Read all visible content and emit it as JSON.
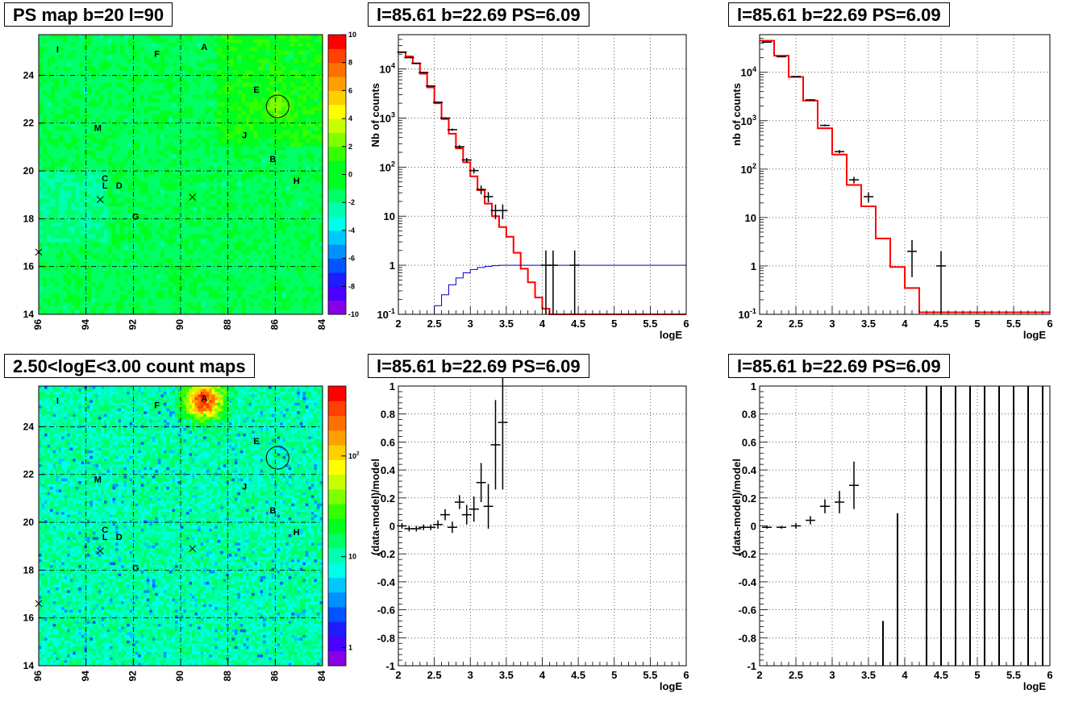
{
  "panels": {
    "map_top": {
      "title": "PS map b=20 l=90"
    },
    "spec_top": {
      "title": "l=85.61 b=22.69 PS=6.09"
    },
    "spec_top2": {
      "title": "l=85.61 b=22.69 PS=6.09"
    },
    "map_bottom": {
      "title": "2.50<logE<3.00 count maps"
    },
    "resid_bottom": {
      "title": "l=85.61 b=22.69 PS=6.09"
    },
    "resid_bottom2": {
      "title": "l=85.61 b=22.69 PS=6.09"
    }
  },
  "colors": {
    "model": "#ff0000",
    "background_model": "#0000cc",
    "data": "#000000"
  },
  "chart_data": [
    {
      "type": "heatmap",
      "title": "PS map b=20 l=90",
      "xlim": [
        96,
        84
      ],
      "ylim": [
        14,
        25.7
      ],
      "x_ticks": [
        "96",
        "94",
        "92",
        "90",
        "88",
        "86",
        "84"
      ],
      "y_ticks": [
        "14",
        "16",
        "18",
        "20",
        "22",
        "24"
      ],
      "palette_ticks": [
        "10",
        "8",
        "6",
        "4",
        "2",
        "0",
        "-2",
        "-4",
        "-6",
        "-8",
        "-10"
      ],
      "zlim": [
        -10,
        10
      ],
      "sources": [
        {
          "label": "A",
          "l": 89.0,
          "b": 25.2
        },
        {
          "label": "F",
          "l": 91.0,
          "b": 24.9
        },
        {
          "label": "I",
          "l": 95.2,
          "b": 25.1
        },
        {
          "label": "E",
          "l": 86.8,
          "b": 23.4
        },
        {
          "label": "M",
          "l": 93.5,
          "b": 21.8
        },
        {
          "label": "J",
          "l": 87.3,
          "b": 21.5
        },
        {
          "label": "B",
          "l": 86.1,
          "b": 20.5
        },
        {
          "label": "H",
          "l": 85.1,
          "b": 19.6
        },
        {
          "label": "C",
          "l": 93.2,
          "b": 19.7
        },
        {
          "label": "L",
          "l": 93.2,
          "b": 19.4
        },
        {
          "label": "D",
          "l": 92.6,
          "b": 19.4
        },
        {
          "label": "G",
          "l": 91.9,
          "b": 18.1
        }
      ],
      "crosses": [
        {
          "l": 93.4,
          "b": 18.8
        },
        {
          "l": 89.5,
          "b": 18.9
        },
        {
          "l": 96.0,
          "b": 16.6
        }
      ],
      "circle": {
        "l": 85.9,
        "b": 22.7
      }
    },
    {
      "type": "line",
      "title": "l=85.61 b=22.69 PS=6.09",
      "xlabel": "logE",
      "ylabel": "Nb of counts",
      "xlim": [
        2,
        6
      ],
      "ylim": [
        0.1,
        50000
      ],
      "yscale": "log",
      "x_ticks": [
        "2",
        "2.5",
        "3",
        "3.5",
        "4",
        "4.5",
        "5",
        "5.5",
        "6"
      ],
      "y_ticks": [
        "10^{-1}",
        "1",
        "10",
        "10^{2}",
        "10^{3}",
        "10^{4}"
      ],
      "bin_edges": [
        2.0,
        2.1,
        2.2,
        2.3,
        2.4,
        2.5,
        2.6,
        2.7,
        2.8,
        2.9,
        3.0,
        3.1,
        3.2,
        3.3,
        3.4,
        3.5,
        3.6,
        3.7,
        3.8,
        3.9,
        4.0,
        4.1,
        4.2
      ],
      "series": [
        {
          "values": [
            22000,
            18000,
            13000,
            8000,
            4200,
            2000,
            950,
            480,
            240,
            125,
            65,
            34,
            18,
            10,
            6,
            3.8,
            1.8,
            0.85,
            0.45,
            0.22,
            0.13,
            0.1
          ]
        },
        {
          "values": [
            0.1,
            0.1,
            0.1,
            0.1,
            0.1,
            0.15,
            0.25,
            0.4,
            0.55,
            0.7,
            0.82,
            0.9,
            0.95,
            0.98,
            1,
            1,
            1,
            1,
            1,
            1,
            1,
            1
          ]
        }
      ],
      "data_points": [
        {
          "x": 2.05,
          "y": 22000
        },
        {
          "x": 2.15,
          "y": 17000
        },
        {
          "x": 2.25,
          "y": 13000
        },
        {
          "x": 2.35,
          "y": 8500
        },
        {
          "x": 2.45,
          "y": 4500
        },
        {
          "x": 2.55,
          "y": 2100
        },
        {
          "x": 2.65,
          "y": 1000
        },
        {
          "x": 2.75,
          "y": 580
        },
        {
          "x": 2.85,
          "y": 260
        },
        {
          "x": 2.95,
          "y": 140
        },
        {
          "x": 3.05,
          "y": 85
        },
        {
          "x": 3.15,
          "y": 35
        },
        {
          "x": 3.25,
          "y": 25
        },
        {
          "x": 3.35,
          "y": 13
        },
        {
          "x": 3.45,
          "y": 13
        },
        {
          "x": 4.05,
          "y": 1
        },
        {
          "x": 4.15,
          "y": 1
        },
        {
          "x": 4.45,
          "y": 1
        }
      ]
    },
    {
      "type": "line",
      "title": "l=85.61 b=22.69 PS=6.09",
      "xlabel": "logE",
      "ylabel": "nb of counts",
      "xlim": [
        2,
        6
      ],
      "ylim": [
        0.1,
        60000
      ],
      "yscale": "log",
      "x_ticks": [
        "2",
        "2.5",
        "3",
        "3.5",
        "4",
        "4.5",
        "5",
        "5.5",
        "6"
      ],
      "y_ticks": [
        "10^{-1}",
        "1",
        "10",
        "10^{2}",
        "10^{3}",
        "10^{4}"
      ],
      "bin_edges": [
        2.0,
        2.2,
        2.4,
        2.6,
        2.8,
        3.0,
        3.2,
        3.4,
        3.6,
        3.8,
        4.0,
        4.2,
        4.4
      ],
      "series": [
        {
          "values": [
            45000,
            22000,
            8000,
            2600,
            700,
            200,
            47,
            17,
            3.7,
            0.95,
            0.35,
            0.11
          ]
        }
      ],
      "data_points": [
        {
          "x": 2.1,
          "y": 42000
        },
        {
          "x": 2.3,
          "y": 21000
        },
        {
          "x": 2.5,
          "y": 8200
        },
        {
          "x": 2.7,
          "y": 2700
        },
        {
          "x": 2.9,
          "y": 800
        },
        {
          "x": 3.1,
          "y": 230
        },
        {
          "x": 3.3,
          "y": 60
        },
        {
          "x": 3.5,
          "y": 27
        },
        {
          "x": 4.1,
          "y": 2
        },
        {
          "x": 4.5,
          "y": 1
        }
      ]
    },
    {
      "type": "heatmap",
      "title": "2.50<logE<3.00 count maps",
      "xlim": [
        96,
        84
      ],
      "ylim": [
        14,
        25.7
      ],
      "x_ticks": [
        "96",
        "94",
        "92",
        "90",
        "88",
        "86",
        "84"
      ],
      "y_ticks": [
        "14",
        "16",
        "18",
        "20",
        "22",
        "24"
      ],
      "palette_ticks": [
        "10^{2}",
        "10",
        "1"
      ],
      "zscale": "log",
      "sources": [
        {
          "label": "A",
          "l": 89.0,
          "b": 25.2
        },
        {
          "label": "F",
          "l": 91.0,
          "b": 24.9
        },
        {
          "label": "I",
          "l": 95.2,
          "b": 25.1
        },
        {
          "label": "E",
          "l": 86.8,
          "b": 23.4
        },
        {
          "label": "M",
          "l": 93.5,
          "b": 21.8
        },
        {
          "label": "J",
          "l": 87.3,
          "b": 21.5
        },
        {
          "label": "B",
          "l": 86.1,
          "b": 20.5
        },
        {
          "label": "H",
          "l": 85.1,
          "b": 19.6
        },
        {
          "label": "C",
          "l": 93.2,
          "b": 19.7
        },
        {
          "label": "L",
          "l": 93.2,
          "b": 19.4
        },
        {
          "label": "D",
          "l": 92.6,
          "b": 19.4
        },
        {
          "label": "G",
          "l": 91.9,
          "b": 18.1
        }
      ],
      "crosses": [
        {
          "l": 93.4,
          "b": 18.8
        },
        {
          "l": 89.5,
          "b": 18.9
        },
        {
          "l": 96.0,
          "b": 16.6
        }
      ],
      "circle": {
        "l": 85.9,
        "b": 22.7
      }
    },
    {
      "type": "scatter",
      "title": "l=85.61 b=22.69 PS=6.09",
      "xlabel": "logE",
      "ylabel": "(data-model)/model",
      "xlim": [
        2,
        6
      ],
      "ylim": [
        -1,
        1
      ],
      "x_ticks": [
        "2",
        "2.5",
        "3",
        "3.5",
        "4",
        "4.5",
        "5",
        "5.5",
        "6"
      ],
      "y_ticks": [
        "1",
        "0.8",
        "0.6",
        "0.4",
        "0.2",
        "0",
        "-0.2",
        "-0.4",
        "-0.6",
        "-0.8",
        "-1"
      ],
      "points": [
        {
          "x": 2.05,
          "y": 0.0,
          "err": 0.02
        },
        {
          "x": 2.15,
          "y": -0.02,
          "err": 0.02
        },
        {
          "x": 2.25,
          "y": -0.02,
          "err": 0.02
        },
        {
          "x": 2.35,
          "y": -0.01,
          "err": 0.02
        },
        {
          "x": 2.45,
          "y": -0.01,
          "err": 0.02
        },
        {
          "x": 2.55,
          "y": 0.01,
          "err": 0.03
        },
        {
          "x": 2.65,
          "y": 0.08,
          "err": 0.04
        },
        {
          "x": 2.75,
          "y": -0.01,
          "err": 0.04
        },
        {
          "x": 2.85,
          "y": 0.17,
          "err": 0.05
        },
        {
          "x": 2.95,
          "y": 0.08,
          "err": 0.07
        },
        {
          "x": 3.05,
          "y": 0.12,
          "err": 0.09
        },
        {
          "x": 3.15,
          "y": 0.31,
          "err": 0.14
        },
        {
          "x": 3.25,
          "y": 0.14,
          "err": 0.16
        },
        {
          "x": 3.35,
          "y": 0.58,
          "err": 0.32
        },
        {
          "x": 3.45,
          "y": 0.74,
          "err": 0.48
        }
      ]
    },
    {
      "type": "scatter",
      "title": "l=85.61 b=22.69 PS=6.09",
      "xlabel": "logE",
      "ylabel": "(data-model)/model",
      "xlim": [
        2,
        6
      ],
      "ylim": [
        -1,
        1
      ],
      "x_ticks": [
        "2",
        "2.5",
        "3",
        "3.5",
        "4",
        "4.5",
        "5",
        "5.5",
        "6"
      ],
      "y_ticks": [
        "1",
        "0.8",
        "0.6",
        "0.4",
        "0.2",
        "0",
        "-0.2",
        "-0.4",
        "-0.6",
        "-0.8",
        "-1"
      ],
      "points": [
        {
          "x": 2.1,
          "y": -0.01,
          "err": 0.01
        },
        {
          "x": 2.3,
          "y": -0.01,
          "err": 0.01
        },
        {
          "x": 2.5,
          "y": 0.0,
          "err": 0.02
        },
        {
          "x": 2.7,
          "y": 0.04,
          "err": 0.03
        },
        {
          "x": 2.9,
          "y": 0.14,
          "err": 0.05
        },
        {
          "x": 3.1,
          "y": 0.17,
          "err": 0.08
        },
        {
          "x": 3.3,
          "y": 0.29,
          "err": 0.17
        }
      ],
      "vertical_lines": [
        {
          "x": 3.7,
          "y1": -1,
          "y2": -0.68
        },
        {
          "x": 3.9,
          "y1": -1,
          "y2": 0.09
        },
        {
          "x": 4.3,
          "y1": -1,
          "y2": 1
        },
        {
          "x": 4.5,
          "y1": -1,
          "y2": 1
        },
        {
          "x": 4.7,
          "y1": -1,
          "y2": 1
        },
        {
          "x": 4.9,
          "y1": -1,
          "y2": 1
        },
        {
          "x": 5.1,
          "y1": -1,
          "y2": 1
        },
        {
          "x": 5.3,
          "y1": -1,
          "y2": 1
        },
        {
          "x": 5.5,
          "y1": -1,
          "y2": 1
        },
        {
          "x": 5.7,
          "y1": -1,
          "y2": 1
        },
        {
          "x": 5.9,
          "y1": -1,
          "y2": 1
        }
      ]
    }
  ]
}
